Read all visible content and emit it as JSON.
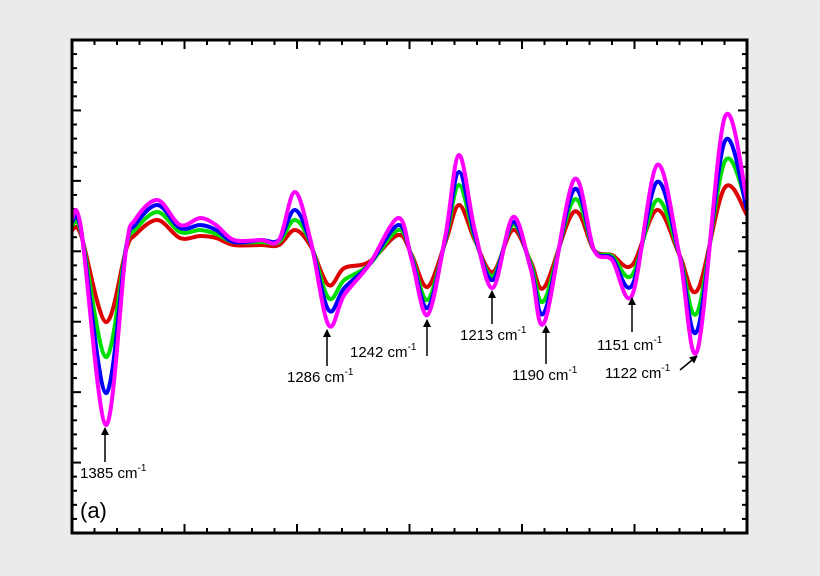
{
  "chart_data": {
    "type": "line",
    "panel_label": "(a)",
    "x": [
      1400,
      1396,
      1385,
      1376,
      1372,
      1362,
      1352,
      1343,
      1336,
      1328,
      1316,
      1308,
      1301,
      1294,
      1286,
      1279,
      1268,
      1255,
      1249,
      1242,
      1234,
      1228,
      1221,
      1213,
      1204,
      1196,
      1190,
      1177,
      1168,
      1160,
      1151,
      1140,
      1130,
      1122,
      1110,
      1100
    ],
    "xlim": [
      1400,
      1100
    ],
    "ylim": [
      -282,
      211
    ],
    "series": [
      {
        "color": "#ff00ff",
        "values": [
          33,
          23,
          -174,
          1,
          31,
          51,
          26,
          33,
          26,
          11,
          11,
          11,
          59,
          11,
          -74,
          -44,
          -14,
          33,
          -9,
          -64,
          16,
          96,
          21,
          -37,
          34,
          -19,
          -71,
          71,
          1,
          -9,
          -44,
          86,
          -4,
          -99,
          133,
          51
        ]
      },
      {
        "color": "#0000ff",
        "values": [
          29,
          21,
          -142,
          3,
          26,
          46,
          23,
          26,
          21,
          9,
          11,
          11,
          41,
          9,
          -59,
          -37,
          -14,
          26,
          -7,
          -57,
          13,
          79,
          16,
          -29,
          29,
          -17,
          -61,
          61,
          1,
          -7,
          -34,
          69,
          -4,
          -79,
          109,
          41
        ]
      },
      {
        "color": "#00dd00",
        "values": [
          25,
          19,
          -106,
          3,
          21,
          39,
          19,
          21,
          17,
          9,
          9,
          9,
          31,
          8,
          -47,
          -29,
          -14,
          21,
          -5,
          -49,
          11,
          66,
          13,
          -25,
          26,
          -13,
          -49,
          51,
          1,
          -5,
          -24,
          51,
          -4,
          -61,
          89,
          46
        ]
      },
      {
        "color": "#dd0000",
        "values": [
          21,
          16,
          -71,
          1,
          16,
          31,
          13,
          15,
          13,
          6,
          6,
          6,
          21,
          5,
          -34,
          -17,
          -11,
          16,
          -4,
          -36,
          9,
          46,
          11,
          -21,
          21,
          -11,
          -36,
          39,
          1,
          -4,
          -14,
          41,
          -4,
          -39,
          63,
          36
        ]
      }
    ],
    "annotations": [
      {
        "text": "1385 cm",
        "sup": "-1"
      },
      {
        "text": "1286 cm",
        "sup": "-1"
      },
      {
        "text": "1242 cm",
        "sup": "-1"
      },
      {
        "text": "1213 cm",
        "sup": "-1"
      },
      {
        "text": "1190 cm",
        "sup": "-1"
      },
      {
        "text": "1151 cm",
        "sup": "-1"
      },
      {
        "text": "1122 cm",
        "sup": "-1"
      }
    ]
  }
}
